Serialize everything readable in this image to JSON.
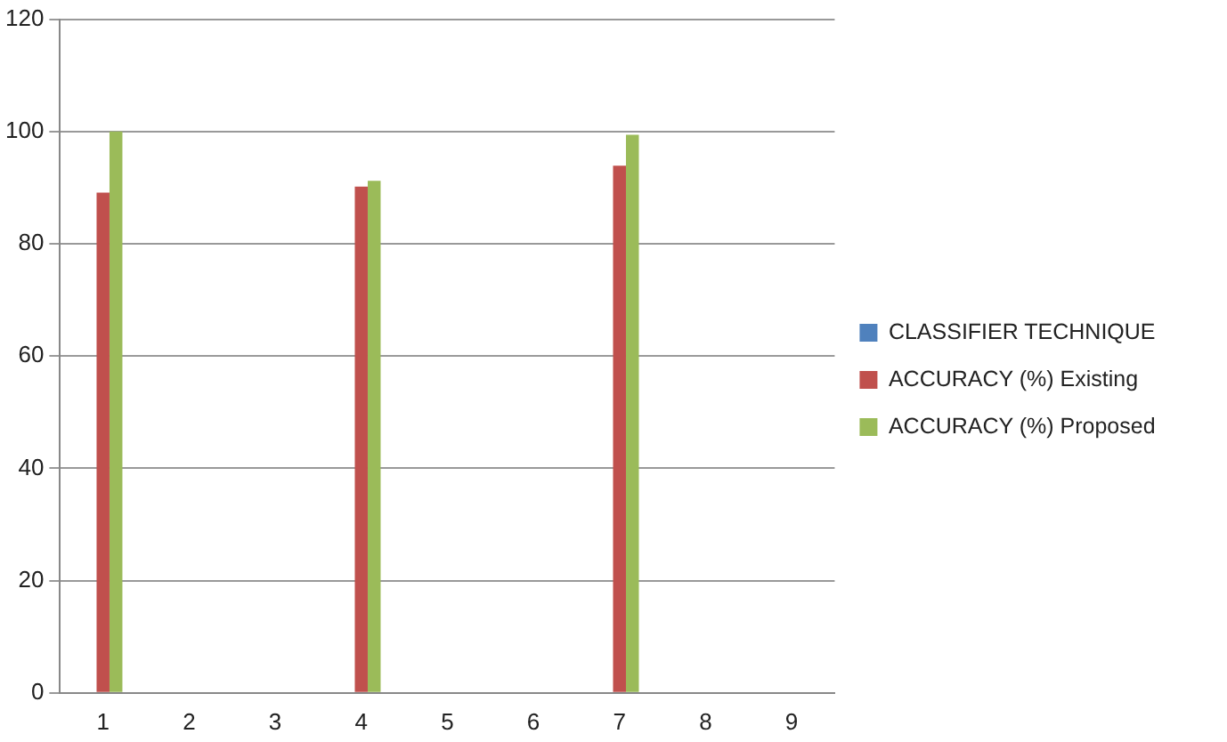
{
  "chart_data": {
    "type": "bar",
    "categories": [
      "1",
      "2",
      "3",
      "4",
      "5",
      "6",
      "7",
      "8",
      "9"
    ],
    "series": [
      {
        "name": "CLASSIFIER TECHNIQUE",
        "color": "#4f81bd",
        "values": [
          null,
          null,
          null,
          null,
          null,
          null,
          null,
          null,
          null
        ]
      },
      {
        "name": "ACCURACY (%) Existing",
        "color": "#c0504d",
        "values": [
          89.1,
          null,
          null,
          90.2,
          null,
          null,
          93.9,
          null,
          null
        ]
      },
      {
        "name": "ACCURACY (%) Proposed",
        "color": "#9bbb59",
        "values": [
          100,
          null,
          null,
          91.2,
          null,
          null,
          99.4,
          null,
          null
        ]
      }
    ],
    "ylim": [
      0,
      120
    ],
    "yticks": [
      0,
      20,
      40,
      60,
      80,
      100,
      120
    ],
    "grid": "y",
    "legend": "right"
  }
}
